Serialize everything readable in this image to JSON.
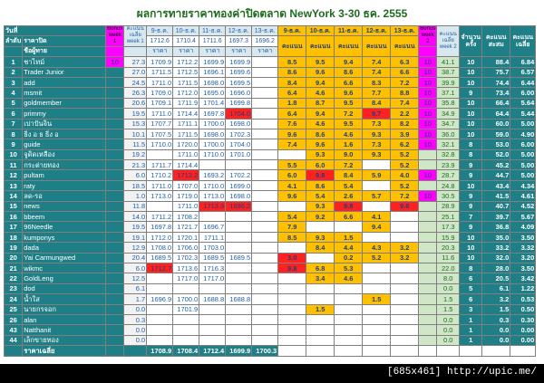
{
  "title": "ผลการทายราคาทองค่าปิดตลาด NewYork 3-30 ธค. 2555",
  "header": {
    "day_label": "วันที่",
    "rank_label": "ลำดับ",
    "closing_label": "ราคาปิด",
    "name_label": "ชื่อผู้ทาย",
    "bonus1": "Bonus week 1",
    "avg1": "คะแนน เฉลี่ย week 1",
    "dates": [
      "9-ธ.ค.",
      "10-ธ.ค.",
      "11-ธ.ค.",
      "12-ธ.ค.",
      "13-ธ.ค."
    ],
    "close_prices": [
      "1712.6",
      "1710.4",
      "1711.6",
      "1697.3",
      "1696.2"
    ],
    "price_label": "ราคา",
    "score_label": "คะแนน",
    "bonus2": "Bonus week 2",
    "avg2": "คะแนน เฉลี่ย week 2",
    "count": "จำนวน ครั้ง",
    "sum": "คะแนน สะสม",
    "avg": "คะแนน เฉลี่ย"
  },
  "rows": [
    {
      "r": "1",
      "n": "ชาไทม์",
      "b1": "10",
      "a1": "27.3",
      "p": [
        "1709.9",
        "1712.2",
        "1699.9",
        "1699.9",
        ""
      ],
      "s": [
        "8.5",
        "9.5",
        "9.4",
        "7.4",
        "6.3"
      ],
      "b2": "10",
      "a2": "41.1",
      "c": "10",
      "t": "88.4",
      "v": "6.84"
    },
    {
      "r": "2",
      "n": "Trader Junior",
      "b1": "",
      "a1": "27.0",
      "p": [
        "1711.5",
        "1712.5",
        "1696.1",
        "1699.6",
        ""
      ],
      "s": [
        "8.6",
        "9.6",
        "8.6",
        "7.4",
        "6.6"
      ],
      "b2": "10",
      "a2": "38.7",
      "c": "10",
      "t": "75.7",
      "v": "6.57"
    },
    {
      "r": "3",
      "n": "add",
      "b1": "",
      "a1": "24.5",
      "p": [
        "1711.0",
        "1711.5",
        "1698.0",
        "1699.5",
        ""
      ],
      "s": [
        "8.4",
        "9.4",
        "6.6",
        "8.3",
        "7.2"
      ],
      "b2": "10",
      "a2": "39.9",
      "c": "10",
      "t": "74.4",
      "v": "6.44"
    },
    {
      "r": "4",
      "n": "msmit",
      "b1": "",
      "a1": "26.3",
      "p": [
        "1709.0",
        "1712.0",
        "1695.0",
        "1696.0",
        ""
      ],
      "s": [
        "6.4",
        "4.6",
        "9.6",
        "7.7",
        "8.8"
      ],
      "b2": "10",
      "a2": "37.1",
      "c": "9",
      "t": "73.4",
      "v": "6.00"
    },
    {
      "r": "5",
      "n": "goldmember",
      "b1": "",
      "a1": "20.6",
      "p": [
        "1709.1",
        "1711.9",
        "1701.4",
        "1699.8",
        ""
      ],
      "s": [
        "1.8",
        "8.7",
        "9.5",
        "8.4",
        "7.4"
      ],
      "b2": "10",
      "a2": "35.8",
      "c": "10",
      "t": "66.4",
      "v": "5.64"
    },
    {
      "r": "6",
      "n": "primmy",
      "b1": "",
      "a1": "19.5",
      "p": [
        "1711.0",
        "1714.4",
        "1697.8",
        "1704.0",
        ""
      ],
      "s": [
        "6.4",
        "9.4",
        "7.2",
        "9.7",
        "2.2"
      ],
      "b2": "10",
      "a2": "34.9",
      "c": "10",
      "t": "64.4",
      "v": "5.44"
    },
    {
      "r": "7",
      "n": "เปาปันจิน",
      "b1": "",
      "a1": "15.3",
      "p": [
        "1707.7",
        "1711.1",
        "1700.0",
        "1698.0",
        ""
      ],
      "s": [
        "7.6",
        "4.6",
        "9.5",
        "7.3",
        "8.2"
      ],
      "b2": "10",
      "a2": "34.7",
      "c": "10",
      "t": "60.0",
      "v": "5.00"
    },
    {
      "r": "8",
      "n": "ธิ่ง อ ธ ธิ่ง อ",
      "b1": "",
      "a1": "10.1",
      "p": [
        "1707.5",
        "1711.5",
        "1698.0",
        "1702.3",
        ""
      ],
      "s": [
        "9.6",
        "8.6",
        "4.6",
        "9.3",
        "3.9"
      ],
      "b2": "10",
      "a2": "36.0",
      "c": "10",
      "t": "59.0",
      "v": "4.90"
    },
    {
      "r": "9",
      "n": "guide",
      "b1": "",
      "a1": "11.5",
      "p": [
        "1710.0",
        "1720.0",
        "1700.0",
        "1704.0",
        ""
      ],
      "s": [
        "7.4",
        "9.6",
        "1.6",
        "7.3",
        "6.2"
      ],
      "b2": "10",
      "a2": "32.1",
      "c": "8",
      "t": "53.0",
      "v": "6.00"
    },
    {
      "r": "10",
      "n": "จูดิดเหลือง",
      "b1": "",
      "a1": "19.2",
      "p": [
        "",
        "1711.0",
        "1710.0",
        "1701.0",
        ""
      ],
      "s": [
        "",
        "9.3",
        "9.0",
        "9.3",
        "5.2"
      ],
      "b2": "",
      "a2": "32.8",
      "c": "8",
      "t": "52.0",
      "v": "5.00"
    },
    {
      "r": "11",
      "n": "กระต่ายทอง",
      "b1": "",
      "a1": "21.3",
      "p": [
        "1711.7",
        "1714.4",
        "",
        "",
        ""
      ],
      "s": [
        "5.5",
        "6.0",
        "7.2",
        "",
        "5.2"
      ],
      "b2": "",
      "a2": "23.9",
      "c": "9",
      "t": "45.2",
      "v": "5.00"
    },
    {
      "r": "12",
      "n": "pultam",
      "b1": "",
      "a1": "6.0",
      "p": [
        "1710.2",
        "1713.2",
        "1693.2",
        "1702.2",
        ""
      ],
      "s": [
        "6.0",
        "9.8",
        "8.4",
        "5.9",
        "4.0"
      ],
      "b2": "10",
      "a2": "28.7",
      "c": "9",
      "t": "44.7",
      "v": "5.00"
    },
    {
      "r": "13",
      "n": "raty",
      "b1": "",
      "a1": "18.5",
      "p": [
        "1711.0",
        "1707.0",
        "1710.0",
        "1699.0",
        ""
      ],
      "s": [
        "4.1",
        "8.6",
        "5.4",
        "",
        "5.2"
      ],
      "b2": "",
      "a2": "24.8",
      "c": "10",
      "t": "43.4",
      "v": "4.34"
    },
    {
      "r": "14",
      "n": "ลด-รอ",
      "b1": "",
      "a1": "1.0",
      "p": [
        "1713.0",
        "1719.0",
        "1713.0",
        "1698.0",
        ""
      ],
      "s": [
        "9.6",
        "5.4",
        "2.6",
        "5.7",
        "7.2"
      ],
      "b2": "10",
      "a2": "30.5",
      "c": "9",
      "t": "41.5",
      "v": "4.61"
    },
    {
      "r": "15",
      "n": "news",
      "b1": "",
      "a1": "11.8",
      "p": [
        "",
        "1711.0",
        "1713.3",
        "1696.2",
        ""
      ],
      "s": [
        "",
        "9.3",
        "9.8",
        "",
        "9.6"
      ],
      "b2": "",
      "a2": "28.9",
      "c": "9",
      "t": "40.7",
      "v": "4.52"
    },
    {
      "r": "16",
      "n": "bbeem",
      "b1": "",
      "a1": "14.0",
      "p": [
        "1711.2",
        "1708.2",
        "",
        "",
        ""
      ],
      "s": [
        "5.4",
        "9.2",
        "6.6",
        "4.1",
        ""
      ],
      "b2": "",
      "a2": "25.1",
      "c": "7",
      "t": "39.7",
      "v": "5.67"
    },
    {
      "r": "17",
      "n": "96Needle",
      "b1": "",
      "a1": "19.5",
      "p": [
        "1697.8",
        "1721.7",
        "1696.7",
        "",
        ""
      ],
      "s": [
        "7.9",
        "",
        "",
        "9.4",
        ""
      ],
      "b2": "",
      "a2": "17.3",
      "c": "9",
      "t": "36.8",
      "v": "4.09"
    },
    {
      "r": "18",
      "n": "kumponys",
      "b1": "",
      "a1": "19.1",
      "p": [
        "1712.0",
        "1720.1",
        "1711.1",
        "",
        ""
      ],
      "s": [
        "8.5",
        "9.3",
        "1.5",
        "",
        ""
      ],
      "b2": "",
      "a2": "15.9",
      "c": "10",
      "t": "35.0",
      "v": "3.50"
    },
    {
      "r": "19",
      "n": "dada",
      "b1": "",
      "a1": "12.9",
      "p": [
        "1708.0",
        "1706.0",
        "1703.0",
        "",
        ""
      ],
      "s": [
        "",
        "8.4",
        "4.4",
        "4.3",
        "3.2"
      ],
      "b2": "",
      "a2": "20.3",
      "c": "10",
      "t": "33.2",
      "v": "3.32"
    },
    {
      "r": "20",
      "n": "Yai Carmungwed",
      "b1": "",
      "a1": "20.4",
      "p": [
        "1689.5",
        "1702.3",
        "1689.5",
        "1689.5",
        ""
      ],
      "s": [
        "3.0",
        "",
        "0.2",
        "5.2",
        "3.2"
      ],
      "b2": "",
      "a2": "11.6",
      "c": "10",
      "t": "32.0",
      "v": "3.20"
    },
    {
      "r": "21",
      "n": "wikmc",
      "b1": "",
      "a1": "6.0",
      "p": [
        "1712.7",
        "1713.6",
        "1716.3",
        "",
        ""
      ],
      "s": [
        "9.8",
        "6.8",
        "5.3",
        "",
        ""
      ],
      "b2": "",
      "a2": "22.0",
      "c": "8",
      "t": "28.0",
      "v": "3.50"
    },
    {
      "r": "22",
      "n": "GoldLeng",
      "b1": "",
      "a1": "12.5",
      "p": [
        "",
        "1717.0",
        "1717.0",
        "",
        ""
      ],
      "s": [
        "",
        "3.4",
        "4.6",
        "",
        ""
      ],
      "b2": "",
      "a2": "8.0",
      "c": "6",
      "t": "20.5",
      "v": "3.42"
    },
    {
      "r": "23",
      "n": "dod",
      "b1": "",
      "a1": "6.1",
      "p": [
        "",
        "",
        "",
        "",
        ""
      ],
      "s": [
        "",
        "",
        "",
        "",
        ""
      ],
      "b2": "",
      "a2": "0.0",
      "c": "5",
      "t": "6.1",
      "v": "1.22"
    },
    {
      "r": "24",
      "n": "น้ำใส",
      "b1": "",
      "a1": "1.7",
      "p": [
        "1696.9",
        "1700.0",
        "1688.8",
        "1688.8",
        ""
      ],
      "s": [
        "",
        "",
        "",
        "1.5",
        ""
      ],
      "b2": "",
      "a2": "1.5",
      "c": "6",
      "t": "3.2",
      "v": "0.53"
    },
    {
      "r": "25",
      "n": "นายกรจอก",
      "b1": "",
      "a1": "0.0",
      "p": [
        "",
        "1701.9",
        "",
        "",
        ""
      ],
      "s": [
        "",
        "1.5",
        "",
        "",
        ""
      ],
      "b2": "",
      "a2": "1.5",
      "c": "3",
      "t": "1.5",
      "v": "0.50"
    },
    {
      "r": "26",
      "n": "alan",
      "b1": "",
      "a1": "0.3",
      "p": [
        "",
        "",
        "",
        "",
        ""
      ],
      "s": [
        "",
        "",
        "",
        "",
        ""
      ],
      "b2": "",
      "a2": "0.0",
      "c": "1",
      "t": "0.3",
      "v": "0.30"
    },
    {
      "r": "43",
      "n": "Natthanit",
      "b1": "",
      "a1": "0.0",
      "p": [
        "",
        "",
        "",
        "",
        ""
      ],
      "s": [
        "",
        "",
        "",
        "",
        ""
      ],
      "b2": "",
      "a2": "0.0",
      "c": "1",
      "t": "0.0",
      "v": "0.00"
    },
    {
      "r": "44",
      "n": "เล็กขายทอง",
      "b1": "",
      "a1": "0.0",
      "p": [
        "",
        "",
        "",
        "",
        ""
      ],
      "s": [
        "",
        "",
        "",
        "",
        ""
      ],
      "b2": "",
      "a2": "0.0",
      "c": "1",
      "t": "0.0",
      "v": "0.00"
    }
  ],
  "footer": {
    "label": "ราคาเฉลี่ย",
    "values": [
      "1708.9",
      "1708.4",
      "1712.4",
      "1699.9",
      "1700.3"
    ]
  },
  "watermark": "[685x461] http://upic.me/",
  "colors": {
    "teal": "#1f7f86",
    "yellow": "#ffc000",
    "magenta": "#ff00ff",
    "red": "#ff2020"
  }
}
